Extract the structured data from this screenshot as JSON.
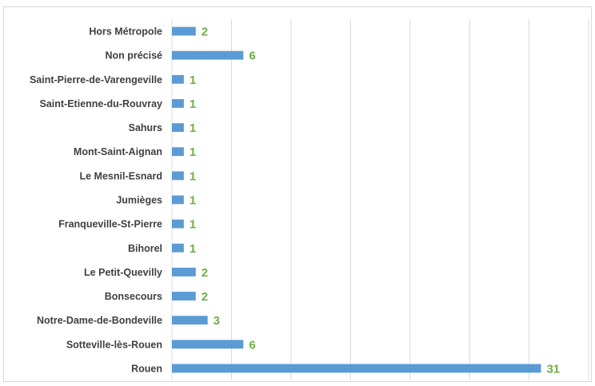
{
  "chart_data": {
    "type": "bar",
    "orientation": "horizontal",
    "categories": [
      "Hors Métropole",
      "Non précisé",
      "Saint-Pierre-de-Varengeville",
      "Saint-Etienne-du-Rouvray",
      "Sahurs",
      "Mont-Saint-Aignan",
      "Le Mesnil-Esnard",
      "Jumièges",
      "Franqueville-St-Pierre",
      "Bihorel",
      "Le Petit-Quevilly",
      "Bonsecours",
      "Notre-Dame-de-Bondeville",
      "Sotteville-lès-Rouen",
      "Rouen"
    ],
    "values": [
      2,
      6,
      1,
      1,
      1,
      1,
      1,
      1,
      1,
      1,
      2,
      2,
      3,
      6,
      31
    ],
    "data_labels": [
      "2",
      "6",
      "1",
      "1",
      "1",
      "1",
      "1",
      "1",
      "1",
      "1",
      "2",
      "2",
      "3",
      "6",
      "31"
    ],
    "title": "",
    "xlabel": "",
    "ylabel": "",
    "xlim": [
      0,
      35
    ],
    "grid": "vertical gridlines",
    "legend": "none",
    "colors": {
      "bar": "#5b9bd5",
      "data_label": "#70ad47",
      "category_label": "#404040",
      "gridline": "#d9d9d9"
    }
  }
}
